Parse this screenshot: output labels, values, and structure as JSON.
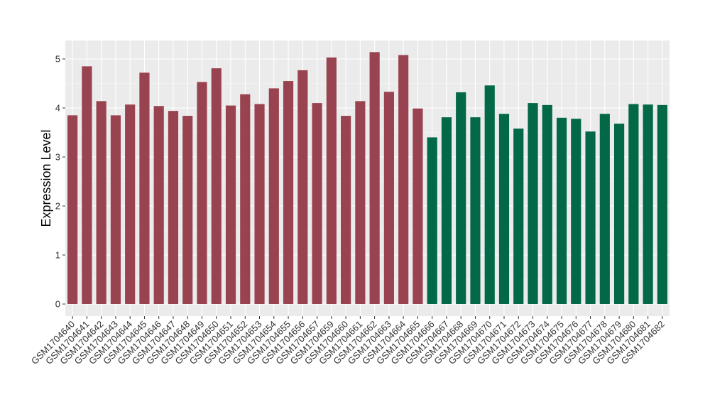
{
  "chart_data": {
    "type": "bar",
    "title": "",
    "xlabel": "",
    "ylabel": "Expression Level",
    "ylim": [
      0,
      5.35
    ],
    "yticks": [
      0,
      1,
      2,
      3,
      4,
      5
    ],
    "ytick_labels": [
      "0",
      "1",
      "2",
      "3",
      "4",
      "5"
    ],
    "grid": true,
    "legend": "none",
    "panel_background": "#ebebeb",
    "categories": [
      "GSM1704640",
      "GSM1704641",
      "GSM1704642",
      "GSM1704643",
      "GSM1704644",
      "GSM1704645",
      "GSM1704646",
      "GSM1704647",
      "GSM1704648",
      "GSM1704649",
      "GSM1704650",
      "GSM1704651",
      "GSM1704652",
      "GSM1704653",
      "GSM1704654",
      "GSM1704655",
      "GSM1704656",
      "GSM1704657",
      "GSM1704659",
      "GSM1704660",
      "GSM1704661",
      "GSM1704662",
      "GSM1704663",
      "GSM1704664",
      "GSM1704665",
      "GSM1704666",
      "GSM1704667",
      "GSM1704668",
      "GSM1704669",
      "GSM1704670",
      "GSM1704671",
      "GSM1704672",
      "GSM1704673",
      "GSM1704674",
      "GSM1704675",
      "GSM1704676",
      "GSM1704677",
      "GSM1704678",
      "GSM1704679",
      "GSM1704680",
      "GSM1704681",
      "GSM1704682"
    ],
    "values": [
      3.85,
      4.85,
      4.14,
      3.85,
      4.07,
      4.72,
      4.04,
      3.94,
      3.84,
      4.53,
      4.81,
      4.05,
      4.28,
      4.08,
      4.4,
      4.55,
      4.77,
      4.1,
      5.03,
      3.84,
      4.14,
      5.14,
      4.33,
      5.08,
      3.99,
      3.4,
      3.81,
      4.32,
      3.81,
      4.46,
      3.88,
      3.58,
      4.1,
      4.06,
      3.8,
      3.78,
      3.52,
      3.88,
      3.68,
      4.08,
      4.07,
      4.06
    ],
    "group_sizes": [
      25,
      17
    ],
    "group_colors": [
      "#9a4350",
      "#036847"
    ]
  }
}
